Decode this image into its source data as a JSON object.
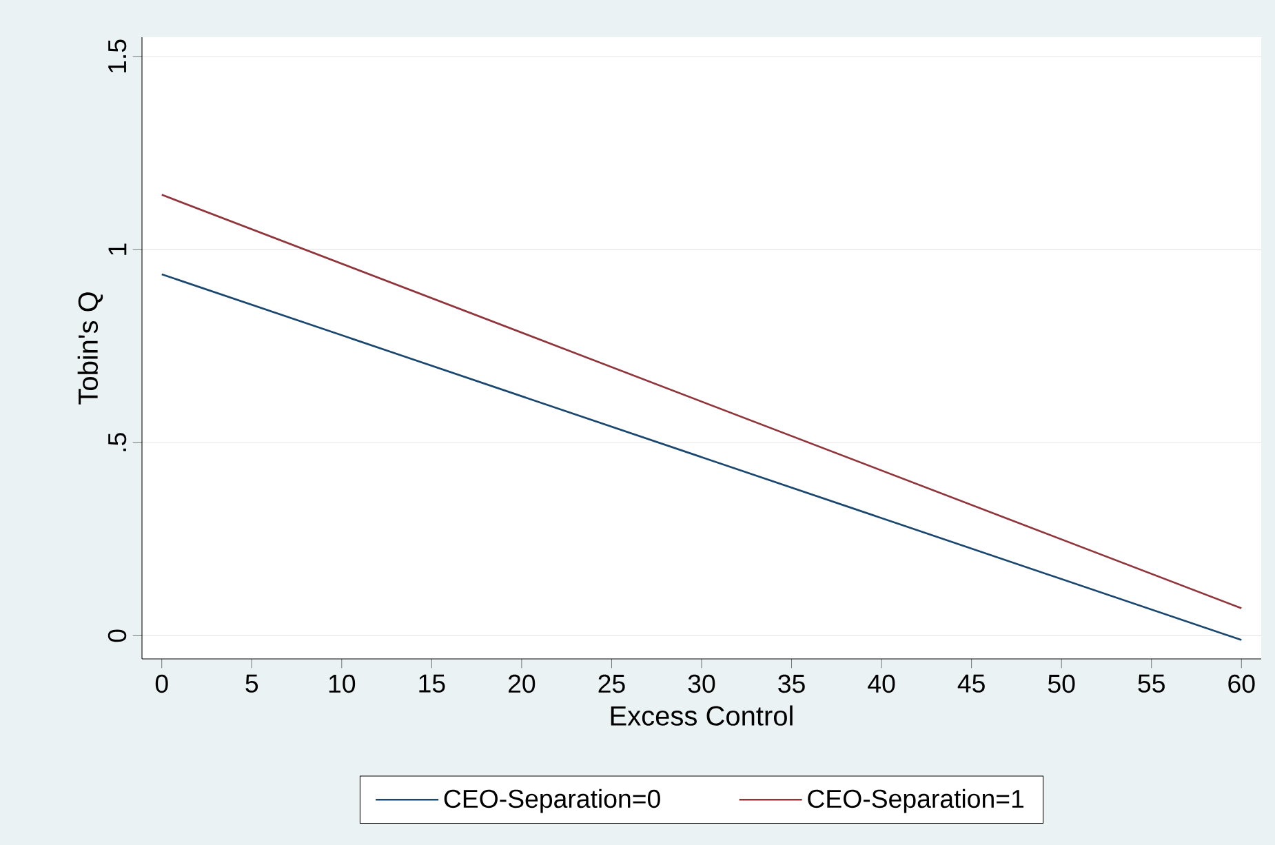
{
  "chart_data": {
    "type": "line",
    "xlabel": "Excess Control",
    "ylabel": "Tobin's Q",
    "x": [
      0,
      60
    ],
    "series": [
      {
        "name": "CEO-Separation=0",
        "color": "#1a476f",
        "values": [
          0.936,
          -0.011
        ]
      },
      {
        "name": "CEO-Separation=1",
        "color": "#90353b",
        "values": [
          1.142,
          0.071
        ]
      }
    ],
    "xlim": [
      -1.1,
      61.1
    ],
    "ylim": [
      -0.06,
      1.55
    ],
    "xticks": [
      0,
      5,
      10,
      15,
      20,
      25,
      30,
      35,
      40,
      45,
      50,
      55,
      60
    ],
    "yticks": [
      0,
      {
        "value": 0.5,
        "label": ".5"
      },
      1,
      1.5
    ],
    "grid": "y",
    "legend": "bottom",
    "line_style": "solid",
    "marker": "none"
  }
}
